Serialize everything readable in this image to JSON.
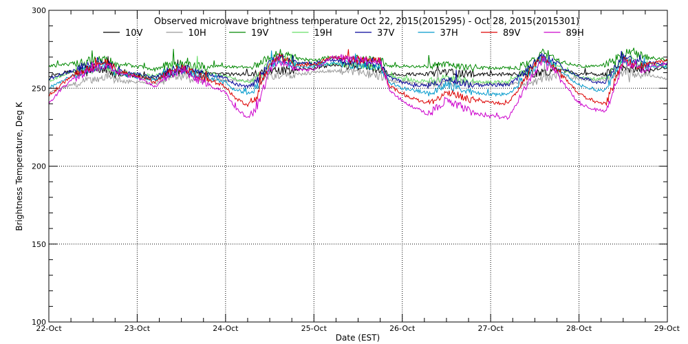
{
  "chart_data": {
    "type": "line",
    "title": "Observed microwave brightness temperature Oct 22, 2015(2015295) - Oct 28, 2015(2015301)",
    "xlabel": "Date (EST)",
    "ylabel": "Brightness Temperature, Deg K",
    "xlim": [
      "22-Oct",
      "29-Oct"
    ],
    "ylim": [
      100,
      300
    ],
    "x_ticks": [
      "22-Oct",
      "23-Oct",
      "24-Oct",
      "25-Oct",
      "26-Oct",
      "27-Oct",
      "28-Oct",
      "29-Oct"
    ],
    "y_ticks": [
      100,
      150,
      200,
      250,
      300
    ],
    "grid": true,
    "legend_position": "top",
    "x_unit": "days since 22-Oct",
    "series": [
      {
        "name": "10V",
        "color": "#000000",
        "points": [
          [
            0,
            258
          ],
          [
            0.15,
            260
          ],
          [
            0.3,
            261
          ],
          [
            0.5,
            262
          ],
          [
            0.65,
            262
          ],
          [
            0.75,
            259
          ],
          [
            0.9,
            258
          ],
          [
            1.0,
            258
          ],
          [
            1.2,
            256
          ],
          [
            1.35,
            259
          ],
          [
            1.5,
            260
          ],
          [
            1.7,
            259
          ],
          [
            2.0,
            259
          ],
          [
            2.3,
            259
          ],
          [
            2.5,
            261
          ],
          [
            2.8,
            262
          ],
          [
            3.0,
            263
          ],
          [
            3.2,
            265
          ],
          [
            3.5,
            264
          ],
          [
            3.75,
            262
          ],
          [
            3.85,
            259
          ],
          [
            4.0,
            259
          ],
          [
            4.3,
            259
          ],
          [
            4.5,
            260
          ],
          [
            4.8,
            259
          ],
          [
            5.0,
            259
          ],
          [
            5.3,
            259
          ],
          [
            5.5,
            259
          ],
          [
            5.75,
            262
          ],
          [
            6.0,
            259
          ],
          [
            6.3,
            259
          ],
          [
            6.5,
            263
          ],
          [
            6.7,
            261
          ],
          [
            7.0,
            263
          ]
        ]
      },
      {
        "name": "10H",
        "color": "#999999",
        "points": [
          [
            0,
            247
          ],
          [
            0.15,
            250
          ],
          [
            0.3,
            253
          ],
          [
            0.5,
            256
          ],
          [
            0.65,
            257
          ],
          [
            0.75,
            255
          ],
          [
            0.9,
            254
          ],
          [
            1.0,
            254
          ],
          [
            1.2,
            253
          ],
          [
            1.35,
            256
          ],
          [
            1.5,
            258
          ],
          [
            1.7,
            256
          ],
          [
            2.0,
            255
          ],
          [
            2.3,
            255
          ],
          [
            2.5,
            258
          ],
          [
            2.8,
            259
          ],
          [
            3.0,
            260
          ],
          [
            3.2,
            261
          ],
          [
            3.5,
            260
          ],
          [
            3.75,
            258
          ],
          [
            3.85,
            255
          ],
          [
            4.0,
            254
          ],
          [
            4.3,
            253
          ],
          [
            4.5,
            254
          ],
          [
            4.8,
            253
          ],
          [
            5.0,
            253
          ],
          [
            5.3,
            253
          ],
          [
            5.5,
            254
          ],
          [
            5.75,
            259
          ],
          [
            6.0,
            256
          ],
          [
            6.3,
            255
          ],
          [
            6.5,
            260
          ],
          [
            6.7,
            259
          ],
          [
            7.0,
            256
          ]
        ]
      },
      {
        "name": "19V",
        "color": "#008800",
        "points": [
          [
            0,
            264
          ],
          [
            0.15,
            265
          ],
          [
            0.3,
            266
          ],
          [
            0.5,
            268
          ],
          [
            0.65,
            268
          ],
          [
            0.75,
            266
          ],
          [
            0.9,
            265
          ],
          [
            1.0,
            264
          ],
          [
            1.2,
            262
          ],
          [
            1.35,
            265
          ],
          [
            1.5,
            266
          ],
          [
            1.7,
            264
          ],
          [
            2.0,
            264
          ],
          [
            2.3,
            263
          ],
          [
            2.5,
            270
          ],
          [
            2.6,
            273
          ],
          [
            2.8,
            269
          ],
          [
            3.0,
            268
          ],
          [
            3.2,
            270
          ],
          [
            3.5,
            269
          ],
          [
            3.75,
            268
          ],
          [
            3.85,
            264
          ],
          [
            4.0,
            264
          ],
          [
            4.3,
            264
          ],
          [
            4.5,
            266
          ],
          [
            4.8,
            263
          ],
          [
            5.0,
            263
          ],
          [
            5.3,
            263
          ],
          [
            5.5,
            268
          ],
          [
            5.6,
            273
          ],
          [
            5.75,
            268
          ],
          [
            6.0,
            264
          ],
          [
            6.3,
            265
          ],
          [
            6.5,
            272
          ],
          [
            6.6,
            274
          ],
          [
            6.7,
            271
          ],
          [
            7.0,
            268
          ]
        ]
      },
      {
        "name": "19H",
        "color": "#66dd66",
        "points": [
          [
            0,
            255
          ],
          [
            0.15,
            258
          ],
          [
            0.3,
            261
          ],
          [
            0.5,
            263
          ],
          [
            0.65,
            264
          ],
          [
            0.75,
            261
          ],
          [
            0.9,
            260
          ],
          [
            1.0,
            259
          ],
          [
            1.2,
            258
          ],
          [
            1.35,
            261
          ],
          [
            1.5,
            263
          ],
          [
            1.7,
            261
          ],
          [
            2.0,
            258
          ],
          [
            2.1,
            256
          ],
          [
            2.25,
            254
          ],
          [
            2.35,
            256
          ],
          [
            2.5,
            266
          ],
          [
            2.6,
            269
          ],
          [
            2.8,
            266
          ],
          [
            3.0,
            265
          ],
          [
            3.2,
            266
          ],
          [
            3.5,
            265
          ],
          [
            3.75,
            264
          ],
          [
            3.85,
            258
          ],
          [
            4.0,
            256
          ],
          [
            4.3,
            254
          ],
          [
            4.5,
            257
          ],
          [
            4.8,
            254
          ],
          [
            5.0,
            254
          ],
          [
            5.2,
            254
          ],
          [
            5.5,
            265
          ],
          [
            5.6,
            269
          ],
          [
            5.75,
            264
          ],
          [
            6.0,
            257
          ],
          [
            6.2,
            256
          ],
          [
            6.3,
            256
          ],
          [
            6.5,
            269
          ],
          [
            6.7,
            266
          ],
          [
            7.0,
            264
          ]
        ]
      },
      {
        "name": "37V",
        "color": "#000099",
        "points": [
          [
            0,
            256
          ],
          [
            0.15,
            259
          ],
          [
            0.3,
            262
          ],
          [
            0.5,
            265
          ],
          [
            0.65,
            266
          ],
          [
            0.75,
            262
          ],
          [
            0.9,
            260
          ],
          [
            1.0,
            259
          ],
          [
            1.2,
            257
          ],
          [
            1.35,
            261
          ],
          [
            1.5,
            263
          ],
          [
            1.7,
            260
          ],
          [
            2.0,
            257
          ],
          [
            2.1,
            253
          ],
          [
            2.25,
            251
          ],
          [
            2.35,
            254
          ],
          [
            2.5,
            266
          ],
          [
            2.6,
            270
          ],
          [
            2.8,
            266
          ],
          [
            3.0,
            266
          ],
          [
            3.2,
            268
          ],
          [
            3.5,
            267
          ],
          [
            3.75,
            265
          ],
          [
            3.85,
            257
          ],
          [
            4.0,
            254
          ],
          [
            4.3,
            251
          ],
          [
            4.5,
            256
          ],
          [
            4.8,
            252
          ],
          [
            5.0,
            252
          ],
          [
            5.2,
            252
          ],
          [
            5.5,
            266
          ],
          [
            5.6,
            271
          ],
          [
            5.75,
            265
          ],
          [
            6.0,
            257
          ],
          [
            6.2,
            254
          ],
          [
            6.3,
            254
          ],
          [
            6.5,
            270
          ],
          [
            6.7,
            266
          ],
          [
            7.0,
            266
          ]
        ]
      },
      {
        "name": "37H",
        "color": "#0099cc",
        "points": [
          [
            0,
            250
          ],
          [
            0.15,
            255
          ],
          [
            0.3,
            259
          ],
          [
            0.5,
            263
          ],
          [
            0.65,
            264
          ],
          [
            0.75,
            260
          ],
          [
            0.9,
            258
          ],
          [
            1.0,
            257
          ],
          [
            1.2,
            255
          ],
          [
            1.35,
            259
          ],
          [
            1.5,
            262
          ],
          [
            1.7,
            258
          ],
          [
            2.0,
            254
          ],
          [
            2.1,
            249
          ],
          [
            2.25,
            247
          ],
          [
            2.35,
            250
          ],
          [
            2.5,
            264
          ],
          [
            2.6,
            268
          ],
          [
            2.8,
            264
          ],
          [
            3.0,
            264
          ],
          [
            3.2,
            266
          ],
          [
            3.5,
            265
          ],
          [
            3.75,
            264
          ],
          [
            3.85,
            254
          ],
          [
            4.0,
            250
          ],
          [
            4.3,
            247
          ],
          [
            4.5,
            252
          ],
          [
            4.8,
            247
          ],
          [
            5.0,
            246
          ],
          [
            5.2,
            246
          ],
          [
            5.5,
            264
          ],
          [
            5.6,
            269
          ],
          [
            5.75,
            263
          ],
          [
            6.0,
            252
          ],
          [
            6.2,
            249
          ],
          [
            6.3,
            249
          ],
          [
            6.5,
            268
          ],
          [
            6.7,
            264
          ],
          [
            7.0,
            264
          ]
        ]
      },
      {
        "name": "89V",
        "color": "#dd0000",
        "points": [
          [
            0,
            245
          ],
          [
            0.15,
            253
          ],
          [
            0.3,
            259
          ],
          [
            0.5,
            264
          ],
          [
            0.65,
            267
          ],
          [
            0.75,
            262
          ],
          [
            0.9,
            259
          ],
          [
            1.0,
            258
          ],
          [
            1.2,
            254
          ],
          [
            1.35,
            260
          ],
          [
            1.5,
            263
          ],
          [
            1.7,
            258
          ],
          [
            2.0,
            251
          ],
          [
            2.1,
            244
          ],
          [
            2.25,
            239
          ],
          [
            2.35,
            244
          ],
          [
            2.5,
            266
          ],
          [
            2.6,
            270
          ],
          [
            2.8,
            265
          ],
          [
            3.0,
            265
          ],
          [
            3.2,
            270
          ],
          [
            3.5,
            268
          ],
          [
            3.75,
            268
          ],
          [
            3.85,
            252
          ],
          [
            4.0,
            246
          ],
          [
            4.3,
            240
          ],
          [
            4.5,
            248
          ],
          [
            4.8,
            242
          ],
          [
            5.0,
            241
          ],
          [
            5.2,
            240
          ],
          [
            5.5,
            265
          ],
          [
            5.6,
            270
          ],
          [
            5.75,
            262
          ],
          [
            6.0,
            246
          ],
          [
            6.2,
            241
          ],
          [
            6.3,
            240
          ],
          [
            6.5,
            268
          ],
          [
            6.7,
            264
          ],
          [
            7.0,
            268
          ]
        ]
      },
      {
        "name": "89H",
        "color": "#cc00cc",
        "points": [
          [
            0,
            240
          ],
          [
            0.15,
            250
          ],
          [
            0.3,
            257
          ],
          [
            0.5,
            262
          ],
          [
            0.65,
            265
          ],
          [
            0.75,
            261
          ],
          [
            0.9,
            258
          ],
          [
            1.0,
            257
          ],
          [
            1.2,
            251
          ],
          [
            1.35,
            258
          ],
          [
            1.5,
            261
          ],
          [
            1.7,
            255
          ],
          [
            2.0,
            247
          ],
          [
            2.1,
            238
          ],
          [
            2.25,
            231
          ],
          [
            2.35,
            236
          ],
          [
            2.5,
            262
          ],
          [
            2.6,
            268
          ],
          [
            2.8,
            262
          ],
          [
            3.0,
            262
          ],
          [
            3.2,
            270
          ],
          [
            3.5,
            268
          ],
          [
            3.75,
            267
          ],
          [
            3.85,
            249
          ],
          [
            4.0,
            242
          ],
          [
            4.3,
            233
          ],
          [
            4.5,
            243
          ],
          [
            4.8,
            234
          ],
          [
            5.0,
            232
          ],
          [
            5.2,
            231
          ],
          [
            5.5,
            261
          ],
          [
            5.6,
            268
          ],
          [
            5.75,
            259
          ],
          [
            6.0,
            240
          ],
          [
            6.2,
            236
          ],
          [
            6.3,
            235
          ],
          [
            6.5,
            266
          ],
          [
            6.7,
            262
          ],
          [
            7.0,
            266
          ]
        ]
      }
    ]
  }
}
